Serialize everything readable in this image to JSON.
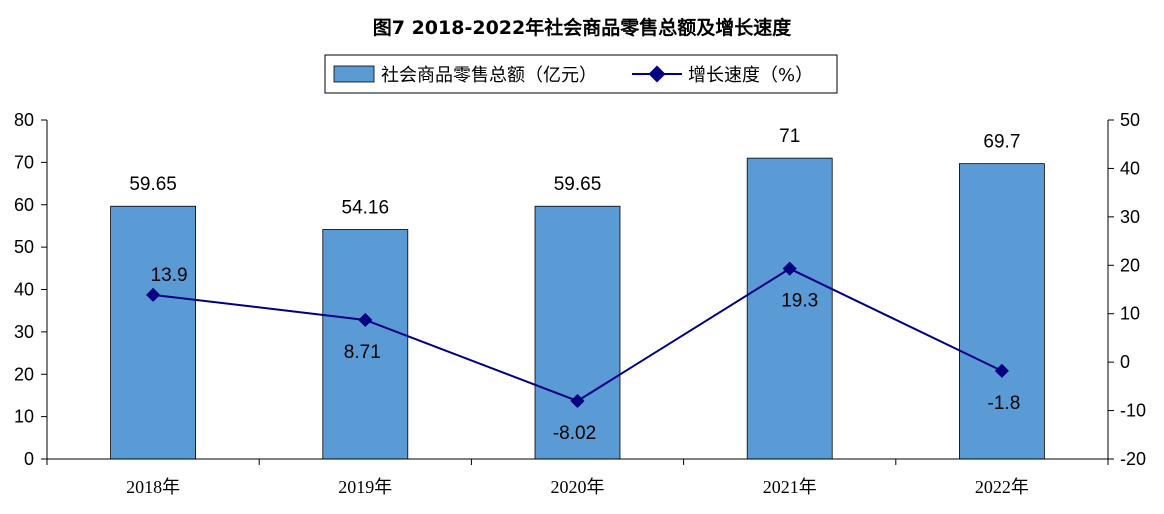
{
  "chart_data": {
    "type": "bar",
    "title": "图7 2018-2022年社会商品零售总额及增长速度",
    "categories": [
      "2018年",
      "2019年",
      "2020年",
      "2021年",
      "2022年"
    ],
    "series": [
      {
        "name": "社会商品零售总额（亿元）",
        "type": "bar",
        "axis": "left",
        "values": [
          59.65,
          54.16,
          59.65,
          71,
          69.7
        ],
        "labels": [
          "59.65",
          "54.16",
          "59.65",
          "71",
          "69.7"
        ],
        "color": "#5b9bd5"
      },
      {
        "name": "增长速度（%）",
        "type": "line",
        "axis": "right",
        "values": [
          13.9,
          8.71,
          -8.02,
          19.3,
          -1.8
        ],
        "labels": [
          "13.9",
          "8.71",
          "-8.02",
          "19.3",
          "-1.8"
        ],
        "color": "#000080"
      }
    ],
    "y_left": {
      "min": 0,
      "max": 80,
      "step": 10,
      "ticks": [
        "0",
        "10",
        "20",
        "30",
        "40",
        "50",
        "60",
        "70",
        "80"
      ]
    },
    "y_right": {
      "min": -20,
      "max": 50,
      "step": 10,
      "ticks": [
        "-20",
        "-10",
        "0",
        "10",
        "20",
        "30",
        "40",
        "50"
      ]
    },
    "grid": false,
    "legend_position": "top-center"
  }
}
